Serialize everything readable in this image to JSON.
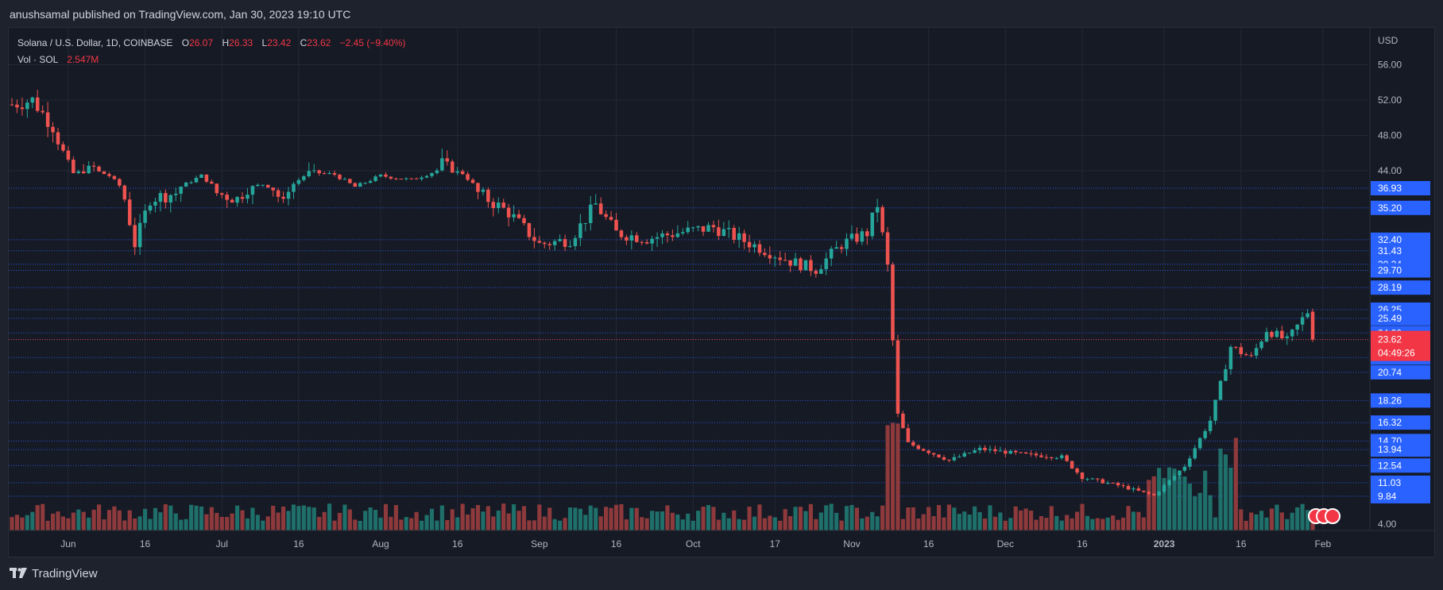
{
  "header": {
    "published_text": "anushsamal published on TradingView.com, Jan 30, 2023 19:10 UTC"
  },
  "footer": {
    "brand": "TradingView"
  },
  "legend": {
    "symbol": "Solana / U.S. Dollar, 1D, COINBASE",
    "open_label": "O",
    "open": "26.07",
    "high_label": "H",
    "high": "26.33",
    "low_label": "L",
    "low": "23.42",
    "close_label": "C",
    "close": "23.62",
    "change": "−2.45 (−9.40%)",
    "vol_label": "Vol · SOL",
    "vol_value": "2.547M"
  },
  "colors": {
    "up": "#26a69a",
    "down": "#ef5350",
    "up_volume": "#1f6f6a",
    "down_volume": "#8e3a3c",
    "level_line": "#2962ff",
    "level_label_bg": "#2962ff",
    "price_label_bg": "#f23645",
    "background": "#161a25",
    "grid": "#242835"
  },
  "chart_data": {
    "type": "candlestick",
    "title": "Solana / U.S. Dollar, 1D, COINBASE",
    "currency_label": "USD",
    "y_scale": "piecewise (compressed below 44)",
    "y_ticks": [
      "56.00",
      "52.00",
      "48.00",
      "44.00",
      "4.00"
    ],
    "x_ticks": [
      "Jun",
      "16",
      "Jul",
      "16",
      "Aug",
      "16",
      "Sep",
      "16",
      "Oct",
      "17",
      "Nov",
      "16",
      "Dec",
      "16",
      "2023",
      "16",
      "Feb"
    ],
    "x_tick_dates": [
      "2022-06-01",
      "2022-06-16",
      "2022-07-01",
      "2022-07-16",
      "2022-08-01",
      "2022-08-16",
      "2022-09-01",
      "2022-09-16",
      "2022-10-01",
      "2022-10-17",
      "2022-11-01",
      "2022-11-16",
      "2022-12-01",
      "2022-12-16",
      "2023-01-01",
      "2023-01-16",
      "2023-02-01"
    ],
    "first_date": "2022-05-21",
    "last_date": "2023-01-30",
    "horizontal_levels": [
      "36.93",
      "35.20",
      "32.40",
      "31.43",
      "30.24",
      "29.70",
      "28.19",
      "26.25",
      "25.49",
      "24.20",
      "22.04",
      "20.74",
      "18.26",
      "16.32",
      "14.70",
      "13.94",
      "12.54",
      "11.03",
      "9.84"
    ],
    "current_price": "23.62",
    "countdown": "04:49:26",
    "anchors": [
      {
        "date": "2022-05-21",
        "close": 51.5
      },
      {
        "date": "2022-05-25",
        "close": 52.0
      },
      {
        "date": "2022-05-29",
        "close": 49.0
      },
      {
        "date": "2022-06-02",
        "close": 43.0
      },
      {
        "date": "2022-06-06",
        "close": 44.3
      },
      {
        "date": "2022-06-09",
        "close": 42.0
      },
      {
        "date": "2022-06-14",
        "close": 32.0
      },
      {
        "date": "2022-06-17",
        "close": 36.0
      },
      {
        "date": "2022-06-22",
        "close": 36.5
      },
      {
        "date": "2022-06-27",
        "close": 42.0
      },
      {
        "date": "2022-06-30",
        "close": 36.5
      },
      {
        "date": "2022-07-04",
        "close": 36.0
      },
      {
        "date": "2022-07-09",
        "close": 38.5
      },
      {
        "date": "2022-07-13",
        "close": 35.5
      },
      {
        "date": "2022-07-18",
        "close": 43.5
      },
      {
        "date": "2022-07-23",
        "close": 42.5
      },
      {
        "date": "2022-07-27",
        "close": 37.5
      },
      {
        "date": "2022-08-01",
        "close": 42.0
      },
      {
        "date": "2022-08-07",
        "close": 40.3
      },
      {
        "date": "2022-08-13",
        "close": 44.8
      },
      {
        "date": "2022-08-17",
        "close": 43.0
      },
      {
        "date": "2022-08-20",
        "close": 36.5
      },
      {
        "date": "2022-08-26",
        "close": 34.8
      },
      {
        "date": "2022-09-01",
        "close": 32.0
      },
      {
        "date": "2022-09-07",
        "close": 32.4
      },
      {
        "date": "2022-09-12",
        "close": 35.5
      },
      {
        "date": "2022-09-16",
        "close": 33.0
      },
      {
        "date": "2022-09-22",
        "close": 32.5
      },
      {
        "date": "2022-09-28",
        "close": 33.0
      },
      {
        "date": "2022-10-05",
        "close": 33.5
      },
      {
        "date": "2022-10-10",
        "close": 32.5
      },
      {
        "date": "2022-10-15",
        "close": 31.5
      },
      {
        "date": "2022-10-20",
        "close": 30.5
      },
      {
        "date": "2022-10-25",
        "close": 29.8
      },
      {
        "date": "2022-10-30",
        "close": 32.0
      },
      {
        "date": "2022-11-04",
        "close": 33.0
      },
      {
        "date": "2022-11-06",
        "close": 35.5
      },
      {
        "date": "2022-11-08",
        "close": 30.0
      },
      {
        "date": "2022-11-10",
        "close": 17.0
      },
      {
        "date": "2022-11-12",
        "close": 14.5
      },
      {
        "date": "2022-11-20",
        "close": 13.0
      },
      {
        "date": "2022-11-26",
        "close": 14.0
      },
      {
        "date": "2022-12-05",
        "close": 13.5
      },
      {
        "date": "2022-12-12",
        "close": 13.3
      },
      {
        "date": "2022-12-16",
        "close": 11.5
      },
      {
        "date": "2022-12-23",
        "close": 10.8
      },
      {
        "date": "2022-12-30",
        "close": 9.9
      },
      {
        "date": "2023-01-05",
        "close": 12.5
      },
      {
        "date": "2023-01-10",
        "close": 16.5
      },
      {
        "date": "2023-01-14",
        "close": 23.0
      },
      {
        "date": "2023-01-18",
        "close": 22.0
      },
      {
        "date": "2023-01-21",
        "close": 24.5
      },
      {
        "date": "2023-01-25",
        "close": 23.5
      },
      {
        "date": "2023-01-29",
        "close": 26.07
      },
      {
        "date": "2023-01-30",
        "close": 23.62
      }
    ]
  }
}
